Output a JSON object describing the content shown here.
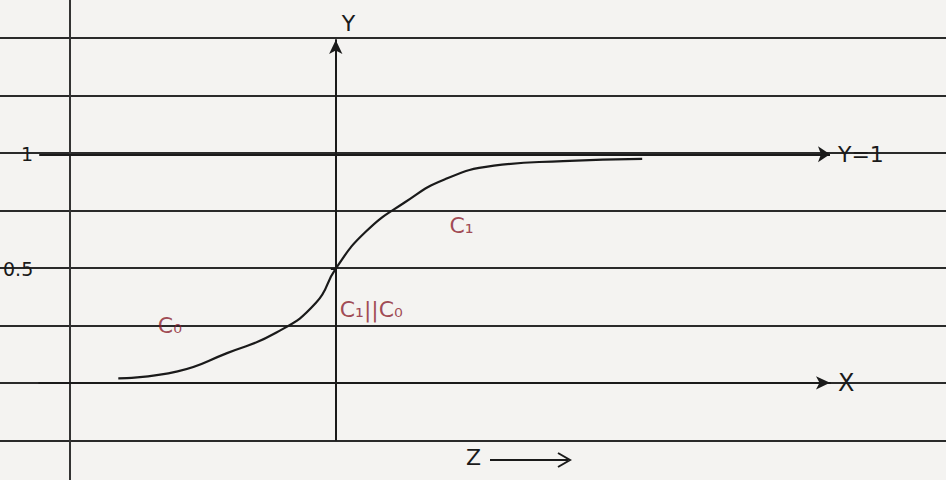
{
  "chart_data": {
    "type": "line",
    "x": [
      -4.4,
      -3.2,
      -2.2,
      -1.2,
      -0.4,
      0,
      0.6,
      1.4,
      2.2,
      3.2,
      4.6,
      6.2
    ],
    "values": [
      0.02,
      0.05,
      0.13,
      0.22,
      0.35,
      0.5,
      0.66,
      0.79,
      0.89,
      0.95,
      0.97,
      0.98
    ],
    "color": "#1a1a1a",
    "xlim": [
      -6,
      10
    ],
    "ylim": [
      -0.25,
      1.5
    ],
    "yticks": [
      0.5,
      1
    ],
    "tick_labels": "y",
    "x_label": "X",
    "y_label": "Y",
    "reference_line": {
      "value": 1,
      "label": "Y=1"
    },
    "annotations": [
      {
        "text": "C₁",
        "x": 2.3,
        "y": 0.69
      },
      {
        "text": "C₀",
        "x": -3.6,
        "y": 0.25
      },
      {
        "text": "C₁||C₀",
        "x": 0.08,
        "y": 0.32
      }
    ],
    "bottom_label": "Z"
  }
}
